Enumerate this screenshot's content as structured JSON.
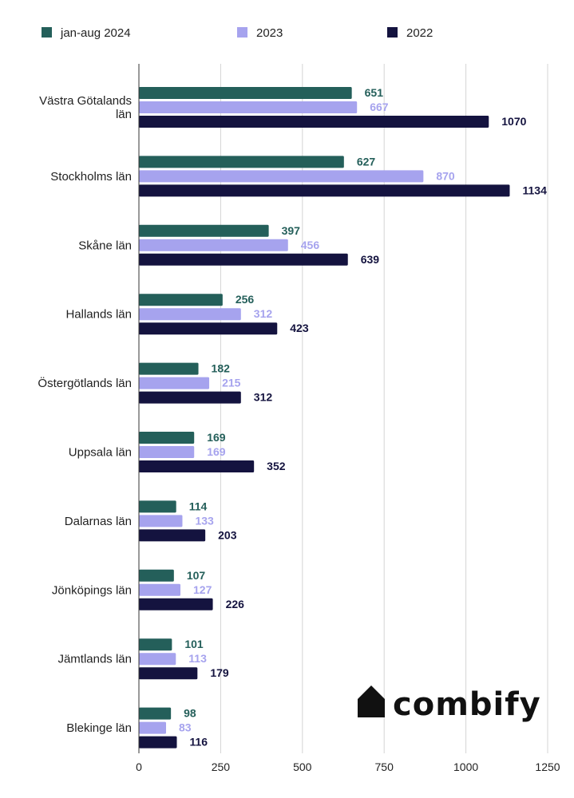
{
  "brand": {
    "name": "combify",
    "logo_icon": "house-icon",
    "color": "#111111"
  },
  "chart_data": {
    "type": "bar",
    "orientation": "horizontal",
    "categories": [
      [
        "Västra Götalands",
        "län"
      ],
      [
        "Stockholms län"
      ],
      [
        "Skåne län"
      ],
      [
        "Hallands län"
      ],
      [
        "Östergötlands län"
      ],
      [
        "Uppsala län"
      ],
      [
        "Dalarnas län"
      ],
      [
        "Jönköpings län"
      ],
      [
        "Jämtlands län"
      ],
      [
        "Blekinge län"
      ]
    ],
    "series": [
      {
        "name": "jan-aug 2024",
        "color": "#245f5a",
        "values": [
          651,
          627,
          397,
          256,
          182,
          169,
          114,
          107,
          101,
          98
        ]
      },
      {
        "name": "2023",
        "color": "#a6a3ee",
        "values": [
          667,
          870,
          456,
          312,
          215,
          169,
          133,
          127,
          113,
          83
        ]
      },
      {
        "name": "2022",
        "color": "#14133f",
        "values": [
          1070,
          1134,
          639,
          423,
          312,
          352,
          203,
          226,
          179,
          116
        ]
      }
    ],
    "xlim": [
      0,
      1250
    ],
    "xticks": [
      "0",
      "250",
      "500",
      "750",
      "1000",
      "1250"
    ],
    "grid": "vertical",
    "legend_position": "top",
    "data_labels": true,
    "title": "",
    "xlabel": "",
    "ylabel": ""
  }
}
